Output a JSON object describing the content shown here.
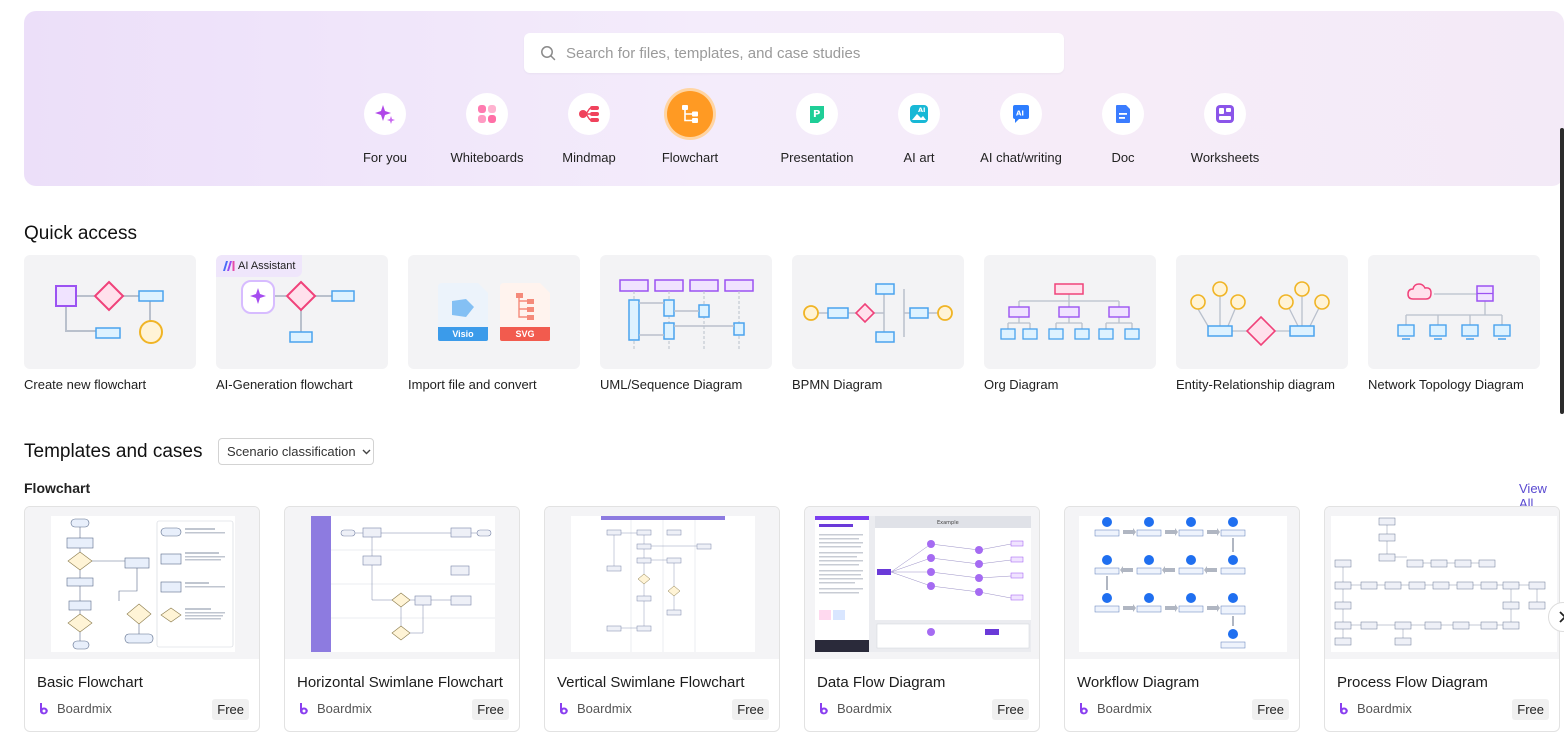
{
  "search": {
    "placeholder": "Search for files, templates, and case studies"
  },
  "categories": [
    {
      "label": "For you",
      "icon": "sparkle-icon"
    },
    {
      "label": "Whiteboards",
      "icon": "whiteboard-icon"
    },
    {
      "label": "Mindmap",
      "icon": "mindmap-icon"
    },
    {
      "label": "Flowchart",
      "icon": "flowchart-icon",
      "active": true
    },
    {
      "label": "Presentation",
      "icon": "presentation-icon"
    },
    {
      "label": "AI art",
      "icon": "ai-art-icon"
    },
    {
      "label": "AI chat/writing",
      "icon": "ai-chat-icon"
    },
    {
      "label": "Doc",
      "icon": "doc-icon"
    },
    {
      "label": "Worksheets",
      "icon": "worksheet-icon"
    }
  ],
  "quick_access": {
    "title": "Quick access",
    "ai_badge": "AI Assistant",
    "items": [
      {
        "label": "Create new flowchart"
      },
      {
        "label": "AI-Generation flowchart"
      },
      {
        "label": "Import file and convert",
        "file_badges": [
          "Visio",
          "SVG"
        ]
      },
      {
        "label": "UML/Sequence Diagram"
      },
      {
        "label": "BPMN Diagram"
      },
      {
        "label": "Org Diagram"
      },
      {
        "label": "Entity-Relationship diagram"
      },
      {
        "label": "Network Topology Diagram"
      }
    ]
  },
  "templates": {
    "title": "Templates and cases",
    "filter_label": "Scenario classification",
    "section_label": "Flowchart",
    "view_all": "View All",
    "items": [
      {
        "name": "Basic Flowchart",
        "author": "Boardmix",
        "price": "Free"
      },
      {
        "name": "Horizontal Swimlane Flowchart",
        "author": "Boardmix",
        "price": "Free"
      },
      {
        "name": "Vertical Swimlane Flowchart",
        "author": "Boardmix",
        "price": "Free"
      },
      {
        "name": "Data Flow Diagram",
        "author": "Boardmix",
        "price": "Free",
        "thumb_heading": "Example"
      },
      {
        "name": "Workflow Diagram",
        "author": "Boardmix",
        "price": "Free"
      },
      {
        "name": "Process Flow Diagram",
        "author": "Boardmix",
        "price": "Free"
      }
    ]
  },
  "colors": {
    "accent": "#5a4ad1",
    "active_category": "#ff9a23",
    "hero_bg": "#f1e7fa"
  }
}
